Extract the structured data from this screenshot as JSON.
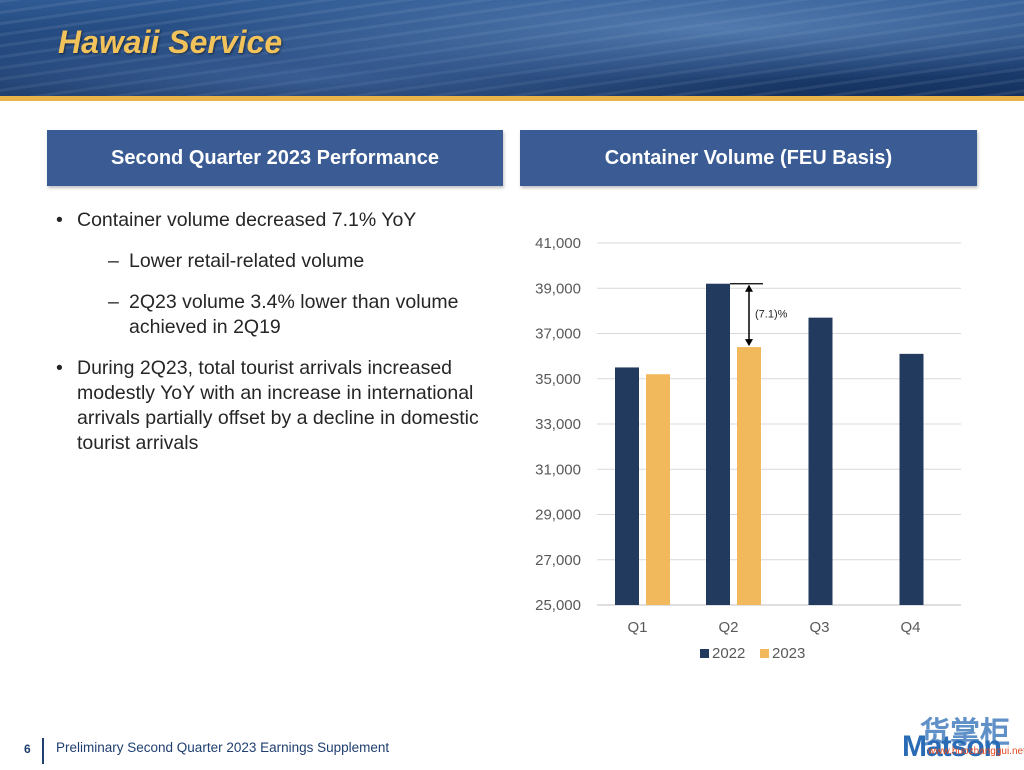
{
  "page": {
    "title": "Hawaii Service",
    "left_header": "Second Quarter 2023 Performance",
    "right_header": "Container Volume (FEU Basis)",
    "footer_page": "6",
    "footer_text": "Preliminary Second Quarter 2023 Earnings Supplement"
  },
  "bullets": {
    "b1": "Container volume decreased 7.1% YoY",
    "b1_sub1": "Lower retail-related volume",
    "b1_sub2": "2Q23 volume 3.4% lower than volume achieved in 2Q19",
    "b2": "During 2Q23, total tourist arrivals increased modestly YoY with an increase in international arrivals partially offset by a decline in domestic tourist arrivals",
    "bullet_char": "•",
    "dash_char": "–"
  },
  "logo": {
    "name": "Matson",
    "watermark": "货掌柜",
    "url": "www.huozhanggui.net"
  },
  "colors": {
    "series_2022": "#223a5e",
    "series_2023": "#f2b85c",
    "header": "#3a5b93",
    "title": "#f2c25b"
  },
  "chart_data": {
    "type": "bar",
    "title": "Container Volume (FEU Basis)",
    "categories": [
      "Q1",
      "Q2",
      "Q3",
      "Q4"
    ],
    "series": [
      {
        "name": "2022",
        "values": [
          35500,
          39200,
          37700,
          36100
        ]
      },
      {
        "name": "2023",
        "values": [
          35200,
          36400,
          null,
          null
        ]
      }
    ],
    "ylim": [
      25000,
      41000
    ],
    "yticks": [
      25000,
      27000,
      29000,
      31000,
      33000,
      35000,
      37000,
      39000,
      41000
    ],
    "ytick_labels": [
      "25,000",
      "27,000",
      "29,000",
      "31,000",
      "33,000",
      "35,000",
      "37,000",
      "39,000",
      "41,000"
    ],
    "grid": true,
    "legend": "bottom",
    "annotation": "(7.1)%"
  }
}
